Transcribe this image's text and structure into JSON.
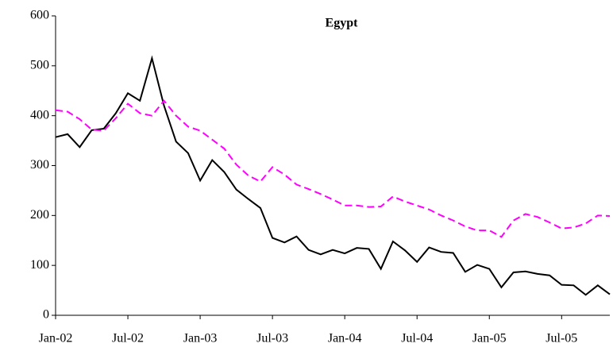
{
  "chart_data": {
    "type": "line",
    "title": "Egypt",
    "categories": [
      "Jan-02",
      null,
      null,
      null,
      null,
      null,
      "Jul-02",
      null,
      null,
      null,
      null,
      null,
      "Jan-03",
      null,
      null,
      null,
      null,
      null,
      "Jul-03",
      null,
      null,
      null,
      null,
      null,
      "Jan-04",
      null,
      null,
      null,
      null,
      null,
      "Jul-04",
      null,
      null,
      null,
      null,
      null,
      "Jan-05",
      null,
      null,
      null,
      null,
      null,
      "Jul-05",
      null,
      null,
      null,
      null
    ],
    "series": [
      {
        "color": "#000000",
        "dashed": false,
        "values": [
          357,
          363,
          337,
          371,
          374,
          405,
          445,
          430,
          515,
          420,
          348,
          325,
          270,
          311,
          287,
          252,
          233,
          215,
          155,
          146,
          158,
          131,
          122,
          131,
          124,
          135,
          133,
          93,
          148,
          130,
          107,
          136,
          127,
          125,
          87,
          101,
          93,
          56,
          86,
          88,
          83,
          80,
          61,
          60,
          41,
          60,
          42
        ]
      },
      {
        "color": "#ff00ff",
        "dashed": true,
        "values": [
          411,
          408,
          393,
          372,
          370,
          395,
          424,
          405,
          400,
          430,
          400,
          378,
          370,
          352,
          334,
          302,
          280,
          268,
          297,
          282,
          262,
          253,
          243,
          232,
          220,
          220,
          217,
          218,
          238,
          228,
          220,
          212,
          200,
          190,
          178,
          170,
          170,
          157,
          190,
          203,
          197,
          186,
          174,
          176,
          184,
          200,
          199
        ]
      }
    ],
    "ylim": [
      0,
      600
    ],
    "yticks": [
      0,
      100,
      200,
      300,
      400,
      500,
      600
    ],
    "grid": false
  }
}
